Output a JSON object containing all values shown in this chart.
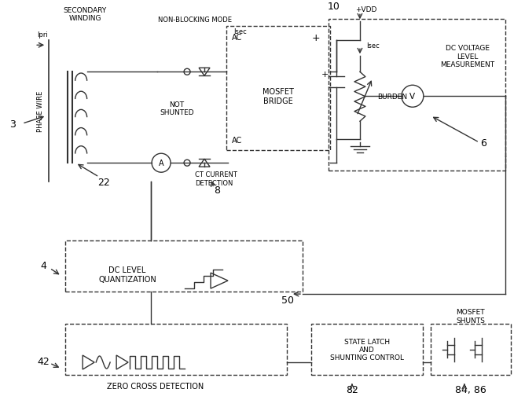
{
  "bg_color": "#ffffff",
  "line_color": "#333333",
  "labels": {
    "secondary_winding": "SECONDARY\nWINDING",
    "ipri": "Ipri",
    "phase_wire": "PHASE WIRE",
    "non_blocking": "NON-BLOCKING MODE",
    "isec_top": "Isec",
    "not_shunted": "NOT\nSHUNTED",
    "ct_current": "CT CURRENT\nDETECTION",
    "mosfet_bridge": "MOSFET\nBRIDGE",
    "ac_top": "AC",
    "ac_bottom": "AC",
    "plus_sign": "+",
    "vdd": "+VDD",
    "isec_right": "Isec",
    "burden": "BURDEN",
    "dc_voltage": "DC VOLTAGE\nLEVEL\nMEASUREMENT",
    "dc_level_quant": "DC LEVEL\nQUANTIZATION",
    "zero_cross": "ZERO CROSS DETECTION",
    "state_latch": "STATE LATCH\nAND\nSHUNTING CONTROL",
    "mosfet_shunts": "MOSFET\nSHUNTS"
  },
  "numbers": {
    "n3": "3",
    "n4": "4",
    "n6": "6",
    "n8": "8",
    "n10": "10",
    "n22": "22",
    "n42": "42",
    "n50": "50",
    "n82": "82",
    "n84_86": "84, 86"
  }
}
